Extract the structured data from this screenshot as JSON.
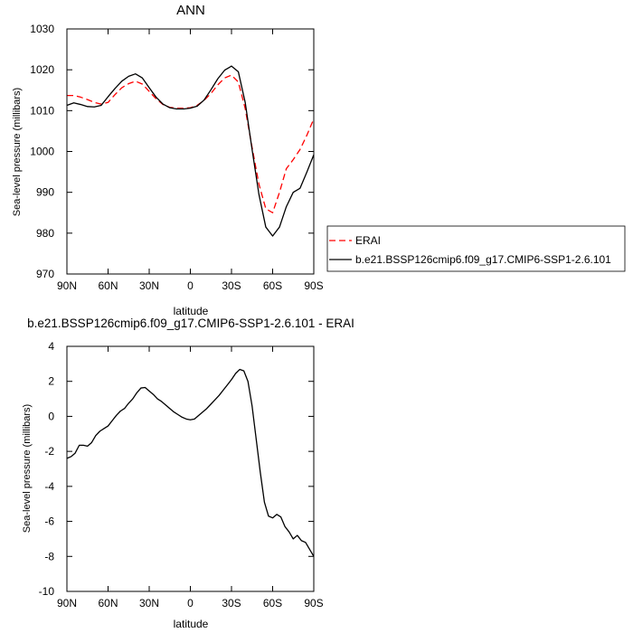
{
  "chart_data": [
    {
      "type": "line",
      "title": "ANN",
      "xlabel": "latitude",
      "ylabel": "Sea-level pressure (millibars)",
      "xlim": [
        -90,
        90
      ],
      "ylim": [
        970,
        1030
      ],
      "x_ticks": [
        -90,
        -60,
        -30,
        0,
        30,
        60,
        90
      ],
      "x_tick_labels": [
        "90N",
        "60N",
        "30N",
        "0",
        "30S",
        "60S",
        "90S"
      ],
      "y_ticks": [
        970,
        980,
        990,
        1000,
        1010,
        1020,
        1030
      ],
      "y_tick_labels": [
        "970",
        "980",
        "990",
        "1000",
        "1010",
        "1020",
        "1030"
      ],
      "legend_position": "right",
      "x": [
        -90,
        -85,
        -80,
        -75,
        -70,
        -65,
        -60,
        -55,
        -50,
        -45,
        -40,
        -35,
        -30,
        -25,
        -20,
        -15,
        -10,
        -5,
        0,
        5,
        10,
        15,
        20,
        25,
        30,
        35,
        40,
        45,
        50,
        55,
        60,
        65,
        70,
        75,
        80,
        85,
        90
      ],
      "series": [
        {
          "name": "ERAI",
          "color": "#ff0000",
          "dash": "dashed",
          "values": [
            1013.7,
            1013.7,
            1013.3,
            1012.7,
            1012.0,
            1011.6,
            1012.0,
            1013.9,
            1015.6,
            1016.6,
            1017.2,
            1016.5,
            1014.7,
            1012.9,
            1011.5,
            1010.8,
            1010.6,
            1010.6,
            1010.7,
            1011.3,
            1012.5,
            1014.2,
            1016.3,
            1018.0,
            1018.7,
            1017.0,
            1010.5,
            1001.0,
            992.0,
            986.0,
            985.0,
            990.0,
            995.8,
            998.0,
            1000.5,
            1004.0,
            1008.0
          ]
        },
        {
          "name": "b.e21.BSSP126cmip6.f09_g17.CMIP6-SSP1-2.6.101",
          "color": "#000000",
          "dash": "solid",
          "values": [
            1011.3,
            1011.9,
            1011.5,
            1011.0,
            1010.9,
            1011.3,
            1013.4,
            1015.4,
            1017.2,
            1018.4,
            1019.0,
            1018.0,
            1015.6,
            1013.3,
            1011.6,
            1010.7,
            1010.4,
            1010.4,
            1010.6,
            1011.1,
            1012.6,
            1015.1,
            1017.8,
            1019.9,
            1020.9,
            1019.5,
            1012.0,
            1000.5,
            989.5,
            981.5,
            979.3,
            981.5,
            986.5,
            990.0,
            991.0,
            995.0,
            999.2
          ]
        }
      ]
    },
    {
      "type": "line",
      "title": "b.e21.BSSP126cmip6.f09_g17.CMIP6-SSP1-2.6.101 - ERAI",
      "xlabel": "latitude",
      "ylabel": "Sea-level pressure (millibars)",
      "xlim": [
        -90,
        90
      ],
      "ylim": [
        -10,
        4
      ],
      "x_ticks": [
        -90,
        -60,
        -30,
        0,
        30,
        60,
        90
      ],
      "x_tick_labels": [
        "90N",
        "60N",
        "30N",
        "0",
        "30S",
        "60S",
        "90S"
      ],
      "y_ticks": [
        -10,
        -8,
        -6,
        -4,
        -2,
        0,
        2,
        4
      ],
      "y_tick_labels": [
        "-10",
        "-8",
        "-6",
        "-4",
        "-2",
        "0",
        "2",
        "4"
      ],
      "x": [
        -90,
        -87,
        -84,
        -81,
        -78,
        -75,
        -72,
        -69,
        -66,
        -63,
        -60,
        -57,
        -54,
        -51,
        -48,
        -45,
        -42,
        -39,
        -36,
        -33,
        -30,
        -27,
        -24,
        -21,
        -18,
        -15,
        -12,
        -9,
        -6,
        -3,
        0,
        3,
        6,
        9,
        12,
        15,
        18,
        21,
        24,
        27,
        30,
        33,
        36,
        39,
        42,
        45,
        48,
        51,
        54,
        57,
        60,
        63,
        66,
        69,
        72,
        75,
        78,
        81,
        84,
        87,
        90
      ],
      "series": [
        {
          "color": "#000000",
          "dash": "solid",
          "values": [
            -2.4,
            -2.3,
            -2.1,
            -1.65,
            -1.65,
            -1.7,
            -1.5,
            -1.1,
            -0.85,
            -0.7,
            -0.55,
            -0.25,
            0.05,
            0.3,
            0.45,
            0.75,
            1.0,
            1.35,
            1.62,
            1.65,
            1.45,
            1.25,
            1.0,
            0.85,
            0.65,
            0.45,
            0.25,
            0.1,
            -0.05,
            -0.15,
            -0.2,
            -0.15,
            0.05,
            0.25,
            0.45,
            0.7,
            0.95,
            1.2,
            1.5,
            1.8,
            2.1,
            2.45,
            2.68,
            2.6,
            2.0,
            0.6,
            -1.3,
            -3.2,
            -4.9,
            -5.7,
            -5.8,
            -5.6,
            -5.75,
            -6.3,
            -6.6,
            -7.0,
            -6.8,
            -7.1,
            -7.2,
            -7.6,
            -8.0
          ]
        }
      ]
    }
  ]
}
